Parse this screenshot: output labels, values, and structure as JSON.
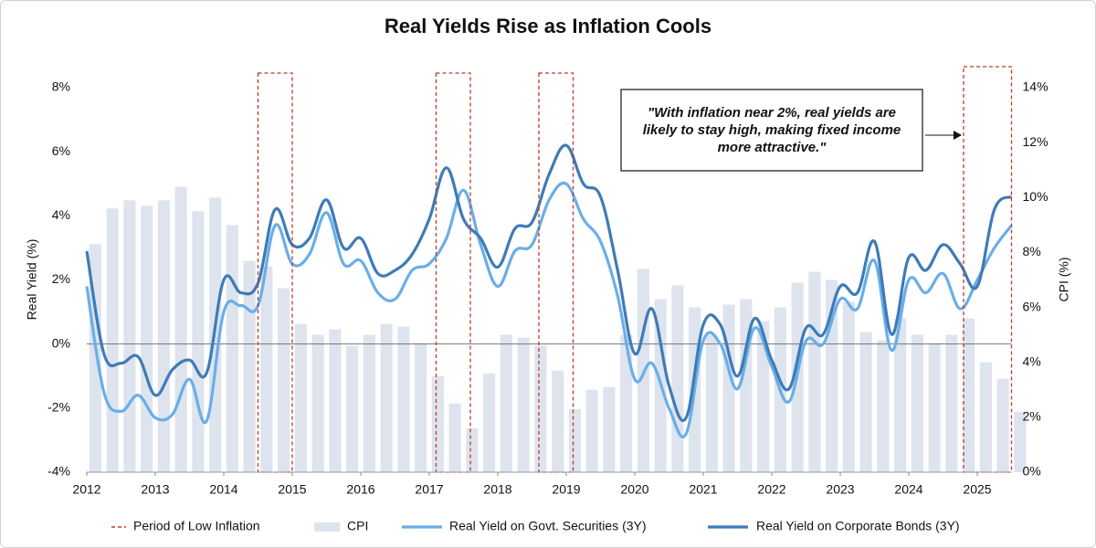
{
  "chart_data": {
    "type": "line",
    "title": "Real Yields Rise as Inflation Cools",
    "ylabel": "Real Yield (%)",
    "y2label": "CPI (%)",
    "x": [
      2012,
      2012.25,
      2012.5,
      2012.75,
      2013,
      2013.25,
      2013.5,
      2013.75,
      2014,
      2014.25,
      2014.5,
      2014.75,
      2015,
      2015.25,
      2015.5,
      2015.75,
      2016,
      2016.25,
      2016.5,
      2016.75,
      2017,
      2017.25,
      2017.5,
      2017.75,
      2018,
      2018.25,
      2018.5,
      2018.75,
      2019,
      2019.25,
      2019.5,
      2019.75,
      2020,
      2020.25,
      2020.5,
      2020.75,
      2021,
      2021.25,
      2021.5,
      2021.75,
      2022,
      2022.25,
      2022.5,
      2022.75,
      2023,
      2023.25,
      2023.5,
      2023.75,
      2024,
      2024.25,
      2024.5,
      2024.75,
      2025,
      2025.25,
      2025.5
    ],
    "xlim": [
      2012,
      2025.5
    ],
    "xticks": [
      2012,
      2013,
      2014,
      2015,
      2016,
      2017,
      2018,
      2019,
      2020,
      2021,
      2022,
      2023,
      2024,
      2025
    ],
    "ylim": [
      -4,
      8
    ],
    "yticks": [
      {
        "value": -4,
        "label": "-4%"
      },
      {
        "value": -2,
        "label": "-2%"
      },
      {
        "value": 0,
        "label": "0%"
      },
      {
        "value": 2,
        "label": "2%"
      },
      {
        "value": 4,
        "label": "4%"
      },
      {
        "value": 6,
        "label": "6%"
      },
      {
        "value": 8,
        "label": "8%"
      }
    ],
    "y2lim": [
      0,
      14
    ],
    "y2ticks": [
      {
        "value": 0,
        "label": "0%"
      },
      {
        "value": 2,
        "label": "2%"
      },
      {
        "value": 4,
        "label": "4%"
      },
      {
        "value": 6,
        "label": "6%"
      },
      {
        "value": 8,
        "label": "8%"
      },
      {
        "value": 10,
        "label": "10%"
      },
      {
        "value": 12,
        "label": "12%"
      },
      {
        "value": 14,
        "label": "14%"
      }
    ],
    "series": [
      {
        "name": "CPI",
        "type": "bar",
        "axis": "y2",
        "color": "#dde4ee",
        "values": [
          8.3,
          9.6,
          9.9,
          9.7,
          9.9,
          10.4,
          9.5,
          10.0,
          9.0,
          7.7,
          7.5,
          6.7,
          5.4,
          5.0,
          5.2,
          4.6,
          5.0,
          5.4,
          5.3,
          4.7,
          3.5,
          2.5,
          1.6,
          3.6,
          5.0,
          4.9,
          4.6,
          3.7,
          2.3,
          3.0,
          3.1,
          5.0,
          7.4,
          6.3,
          6.8,
          6.0,
          5.0,
          6.1,
          6.3,
          5.5,
          6.0,
          6.9,
          7.3,
          7.0,
          6.2,
          5.1,
          4.8,
          5.6,
          5.0,
          4.7,
          5.0,
          5.6,
          4.0,
          3.4,
          2.2
        ]
      },
      {
        "name": "Real Yield on Govt. Securities (3Y)",
        "color": "#6aaee8",
        "values": [
          1.8,
          -1.5,
          -2.1,
          -1.6,
          -2.3,
          -2.2,
          -1.1,
          -2.4,
          1.0,
          1.2,
          1.2,
          3.7,
          2.5,
          2.8,
          4.1,
          2.5,
          2.6,
          1.6,
          1.4,
          2.3,
          2.5,
          3.3,
          4.8,
          3.1,
          1.8,
          2.9,
          3.1,
          4.5,
          5.0,
          3.9,
          3.2,
          1.5,
          -1.1,
          -0.6,
          -2.0,
          -2.8,
          0.1,
          0.0,
          -1.4,
          0.5,
          -0.7,
          -1.8,
          0.1,
          0.0,
          1.4,
          1.1,
          2.6,
          -0.2,
          2.0,
          1.6,
          2.2,
          1.1,
          2.0,
          3.0,
          3.7
        ]
      },
      {
        "name": "Real Yield on Corporate Bonds (3Y)",
        "color": "#3f7bb6",
        "values": [
          2.9,
          -0.3,
          -0.6,
          -0.4,
          -1.6,
          -0.8,
          -0.5,
          -0.9,
          2.0,
          1.6,
          1.9,
          4.2,
          3.1,
          3.3,
          4.5,
          3.0,
          3.3,
          2.2,
          2.3,
          2.8,
          3.9,
          5.5,
          3.9,
          3.3,
          2.4,
          3.6,
          3.8,
          5.3,
          6.2,
          5.0,
          4.6,
          2.3,
          -0.3,
          1.1,
          -1.3,
          -2.3,
          0.6,
          0.6,
          -1.0,
          0.8,
          -0.5,
          -1.4,
          0.5,
          0.3,
          1.8,
          1.6,
          3.2,
          0.3,
          2.7,
          2.3,
          3.1,
          2.5,
          1.8,
          4.2,
          4.6
        ]
      }
    ],
    "highlights": {
      "name": "Period of Low Inflation",
      "color": "#c0392b",
      "periods": [
        [
          2014.5,
          2015.0
        ],
        [
          2017.1,
          2017.6
        ],
        [
          2018.6,
          2019.1
        ],
        [
          2024.8,
          2025.5
        ]
      ]
    },
    "annotation": "\"With inflation near 2%, real yields are likely to stay high, making fixed income more attractive.\""
  }
}
